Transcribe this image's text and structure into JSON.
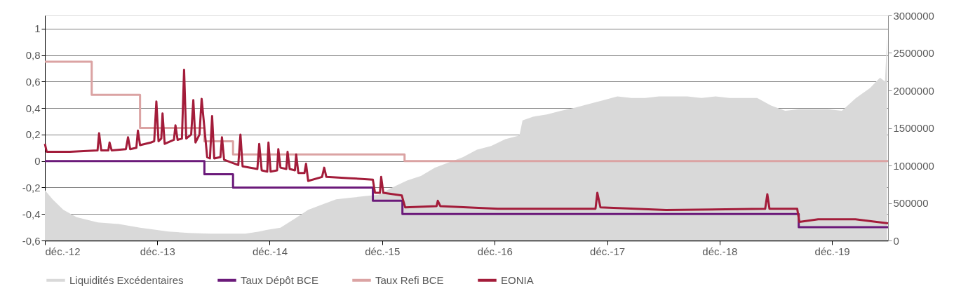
{
  "chart_data": {
    "type": "line",
    "xlim": [
      "2012-12-01",
      "2020-05-31"
    ],
    "xticks": [
      {
        "value": "2012-12-01",
        "label": "déc.-12"
      },
      {
        "value": "2013-12-01",
        "label": "déc.-13"
      },
      {
        "value": "2014-12-01",
        "label": "déc.-14"
      },
      {
        "value": "2015-12-01",
        "label": "déc.-15"
      },
      {
        "value": "2016-12-01",
        "label": "déc.-16"
      },
      {
        "value": "2017-12-01",
        "label": "déc.-17"
      },
      {
        "value": "2018-12-01",
        "label": "déc.-18"
      },
      {
        "value": "2019-12-01",
        "label": "déc.-19"
      }
    ],
    "ylim": [
      -0.6,
      1.1
    ],
    "yticks": [
      {
        "value": -0.6,
        "label": "-0,6"
      },
      {
        "value": -0.4,
        "label": "-0,4"
      },
      {
        "value": -0.2,
        "label": "-0,2"
      },
      0,
      {
        "value": 0.2,
        "label": "0,2"
      },
      {
        "value": 0.4,
        "label": "0,4"
      },
      {
        "value": 0.6,
        "label": "0,6"
      },
      {
        "value": 0.8,
        "label": "0,8"
      },
      1
    ],
    "y2lim": [
      0,
      3000000
    ],
    "y2ticks": [
      0,
      500000,
      1000000,
      1500000,
      2000000,
      2500000,
      3000000
    ],
    "grid": "y",
    "legend": "bottom",
    "series": [
      {
        "name": "Liquidités Excédentaires",
        "type": "area",
        "axis": "y2",
        "color": "#d9d9d9",
        "x": [
          "2012-12-01",
          "2012-12-26",
          "2013-01-30",
          "2013-03-14",
          "2013-05-22",
          "2013-07-29",
          "2013-10-06",
          "2013-11-30",
          "2014-01-06",
          "2014-03-13",
          "2014-05-21",
          "2014-07-28",
          "2014-09-13",
          "2014-10-28",
          "2014-11-20",
          "2015-01-05",
          "2015-02-20",
          "2015-04-05",
          "2015-05-20",
          "2015-07-05",
          "2015-08-20",
          "2015-10-05",
          "2015-11-20",
          "2016-01-05",
          "2016-02-20",
          "2016-04-05",
          "2016-05-20",
          "2016-07-04",
          "2016-08-19",
          "2016-10-04",
          "2016-11-19",
          "2017-01-04",
          "2017-02-19",
          "2017-03-01",
          "2017-04-04",
          "2017-05-19",
          "2017-07-04",
          "2017-08-19",
          "2017-10-03",
          "2017-11-18",
          "2018-01-03",
          "2018-02-18",
          "2018-04-03",
          "2018-05-18",
          "2018-07-03",
          "2018-08-18",
          "2018-10-03",
          "2018-11-18",
          "2019-01-02",
          "2019-02-17",
          "2019-04-02",
          "2019-05-17",
          "2019-07-02",
          "2019-08-17",
          "2019-10-02",
          "2019-11-17",
          "2020-01-02",
          "2020-02-17",
          "2020-04-02",
          "2020-05-05",
          "2020-05-21",
          "2020-05-28"
        ],
        "values": [
          670000,
          550000,
          410000,
          310000,
          240000,
          220000,
          170000,
          140000,
          120000,
          100000,
          90000,
          90000,
          90000,
          120000,
          140000,
          170000,
          290000,
          410000,
          480000,
          550000,
          570000,
          590000,
          610000,
          710000,
          800000,
          860000,
          970000,
          1040000,
          1110000,
          1210000,
          1260000,
          1350000,
          1400000,
          1600000,
          1650000,
          1680000,
          1730000,
          1770000,
          1820000,
          1870000,
          1920000,
          1900000,
          1900000,
          1920000,
          1920000,
          1920000,
          1900000,
          1920000,
          1900000,
          1900000,
          1900000,
          1800000,
          1730000,
          1750000,
          1750000,
          1750000,
          1730000,
          1900000,
          2030000,
          2170000,
          2120000,
          2720000
        ]
      },
      {
        "name": "Taux Dépôt BCE",
        "type": "step",
        "color": "#6b1a7a",
        "x": [
          "2012-12-01",
          "2014-05-03",
          "2014-08-04",
          "2015-11-01",
          "2016-02-05",
          "2019-08-15",
          "2020-05-31"
        ],
        "values": [
          0,
          -0.1,
          -0.2,
          -0.3,
          -0.4,
          -0.5,
          -0.5
        ]
      },
      {
        "name": "Taux Refi BCE",
        "type": "step",
        "color": "#dba3a3",
        "x": [
          "2012-12-01",
          "2013-05-02",
          "2013-10-06",
          "2014-05-03",
          "2014-08-04",
          "2016-02-12",
          "2020-05-31"
        ],
        "values": [
          0.75,
          0.5,
          0.25,
          0.15,
          0.05,
          0,
          0
        ]
      },
      {
        "name": "EONIA",
        "color": "#a31c3a",
        "x": [
          "2012-12-01",
          "2012-12-07",
          "2013-02-20",
          "2013-05-21",
          "2013-05-26",
          "2013-06-02",
          "2013-06-25",
          "2013-06-29",
          "2013-07-06",
          "2013-08-21",
          "2013-08-28",
          "2013-09-04",
          "2013-09-24",
          "2013-09-29",
          "2013-10-06",
          "2013-11-10",
          "2013-11-21",
          "2013-11-28",
          "2013-12-05",
          "2013-12-14",
          "2013-12-18",
          "2013-12-25",
          "2014-01-24",
          "2014-01-29",
          "2014-02-05",
          "2014-02-19",
          "2014-02-26",
          "2014-03-05",
          "2014-03-21",
          "2014-03-28",
          "2014-04-04",
          "2014-04-17",
          "2014-04-24",
          "2014-05-03",
          "2014-05-12",
          "2014-05-21",
          "2014-05-28",
          "2014-06-04",
          "2014-06-24",
          "2014-06-29",
          "2014-07-06",
          "2014-08-21",
          "2014-08-28",
          "2014-09-04",
          "2014-10-22",
          "2014-10-28",
          "2014-11-05",
          "2014-11-23",
          "2014-11-27",
          "2014-12-04",
          "2014-12-25",
          "2014-12-29",
          "2015-01-05",
          "2015-01-24",
          "2015-01-28",
          "2015-02-04",
          "2015-02-21",
          "2015-02-25",
          "2015-03-04",
          "2015-03-24",
          "2015-03-29",
          "2015-04-05",
          "2015-05-20",
          "2015-05-27",
          "2015-06-03",
          "2015-08-20",
          "2015-11-01",
          "2015-11-08",
          "2015-11-24",
          "2015-11-28",
          "2015-12-05",
          "2016-02-03",
          "2016-02-14",
          "2016-05-26",
          "2016-05-30",
          "2016-06-07",
          "2016-12-11",
          "2017-10-24",
          "2017-10-30",
          "2017-11-09",
          "2018-06-10",
          "2019-04-28",
          "2019-05-05",
          "2019-05-12",
          "2019-08-10",
          "2019-08-17",
          "2019-10-17",
          "2020-02-15",
          "2020-05-31"
        ],
        "values": [
          0.13,
          0.07,
          0.07,
          0.08,
          0.21,
          0.08,
          0.08,
          0.14,
          0.08,
          0.09,
          0.18,
          0.09,
          0.1,
          0.23,
          0.12,
          0.14,
          0.15,
          0.45,
          0.15,
          0.17,
          0.36,
          0.13,
          0.16,
          0.27,
          0.16,
          0.17,
          0.69,
          0.17,
          0.2,
          0.46,
          0.14,
          0.2,
          0.47,
          0.25,
          0.03,
          0.02,
          0.34,
          0.02,
          0.03,
          0.18,
          0.01,
          -0.03,
          0.2,
          -0.04,
          -0.06,
          0.13,
          -0.07,
          -0.08,
          0.14,
          -0.08,
          -0.07,
          0.09,
          -0.05,
          -0.06,
          0.07,
          -0.06,
          -0.07,
          0.05,
          -0.09,
          -0.09,
          -0.02,
          -0.15,
          -0.12,
          -0.05,
          -0.12,
          -0.13,
          -0.14,
          -0.24,
          -0.24,
          -0.12,
          -0.24,
          -0.26,
          -0.35,
          -0.34,
          -0.3,
          -0.34,
          -0.36,
          -0.36,
          -0.24,
          -0.35,
          -0.37,
          -0.36,
          -0.25,
          -0.36,
          -0.36,
          -0.46,
          -0.44,
          -0.44,
          -0.47
        ]
      }
    ]
  }
}
